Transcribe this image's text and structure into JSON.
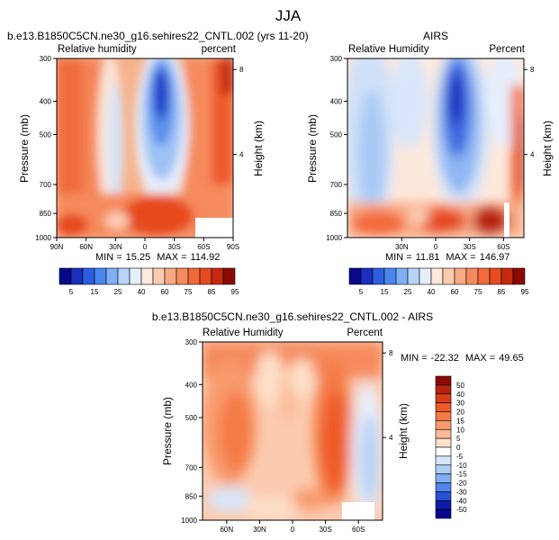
{
  "page_title": "JJA",
  "colorbar_main": {
    "labels": [
      "5",
      "15",
      "25",
      "40",
      "60",
      "75",
      "85",
      "95"
    ],
    "colors": [
      "#08088c",
      "#1a2fbd",
      "#2c5fe0",
      "#4a86ef",
      "#7fb0f5",
      "#b7d3f9",
      "#e6eefa",
      "#fde8dc",
      "#fbcbb0",
      "#f8a983",
      "#f58a5c",
      "#f26a3b",
      "#e64a1e",
      "#c42a0e",
      "#8c0a05"
    ]
  },
  "colorbar_diff": {
    "labels": [
      "50",
      "40",
      "30",
      "20",
      "15",
      "10",
      "5",
      "0",
      "-5",
      "-10",
      "-15",
      "-20",
      "-30",
      "-40",
      "-50"
    ],
    "colors": [
      "#8c0a05",
      "#b8230b",
      "#d63c16",
      "#ee5a28",
      "#f47a45",
      "#f89a6c",
      "#fbbb97",
      "#fde0c9",
      "#ffffff",
      "#d7e6fa",
      "#aecdf6",
      "#80aef0",
      "#4f86e8",
      "#2750d2",
      "#0e1aa8",
      "#08088c"
    ]
  },
  "chart_data": [
    {
      "type": "heatmap",
      "title": "b.e13.B1850C5CN.ne30_g16.sehires22_CNTL.002 (yrs 11-20)",
      "left_label": "Relative humidity",
      "right_label": "percent",
      "ylabel": "Pressure (mb)",
      "y2label": "Height (km)",
      "y_ticks": [
        "300",
        "400",
        "500",
        "700",
        "850",
        "1000"
      ],
      "y2_ticks": [
        "8",
        "4"
      ],
      "x_ticks": [
        "90N",
        "60N",
        "30N",
        "0",
        "30S",
        "60S",
        "90S"
      ],
      "stats": {
        "min_label": "MIN =",
        "min": "15.25",
        "max_label": "MAX =",
        "max": "114.92"
      },
      "ylim": [
        1000,
        300
      ],
      "xlim": [
        "90N",
        "90S"
      ]
    },
    {
      "type": "heatmap",
      "title": "AIRS",
      "left_label": "Relative Humidity",
      "right_label": "Percent",
      "ylabel": "Pressure (mb)",
      "y2label": "Height (km)",
      "y_ticks": [
        "300",
        "400",
        "500",
        "700",
        "850",
        "1000"
      ],
      "y2_ticks": [
        "8",
        "4"
      ],
      "x_ticks": [
        "30N",
        "0",
        "30S",
        "60S"
      ],
      "stats": {
        "min_label": "MIN =",
        "min": "11.81",
        "max_label": "MAX =",
        "max": "146.97"
      },
      "ylim": [
        1000,
        300
      ]
    },
    {
      "type": "heatmap",
      "title": "b.e13.B1850C5CN.ne30_g16.sehires22_CNTL.002 - AIRS",
      "left_label": "Relative Humidity",
      "right_label": "Percent",
      "ylabel": "Pressure (mb)",
      "y2label": "Height (km)",
      "y_ticks": [
        "300",
        "400",
        "500",
        "700",
        "850",
        "1000"
      ],
      "y2_ticks": [
        "8",
        "4"
      ],
      "x_ticks": [
        "60N",
        "30N",
        "0",
        "30S",
        "60S"
      ],
      "stats": {
        "min_label": "MIN =",
        "min": "-22.32",
        "max_label": "MAX =",
        "max": "49.65"
      },
      "ylim": [
        1000,
        300
      ]
    }
  ]
}
